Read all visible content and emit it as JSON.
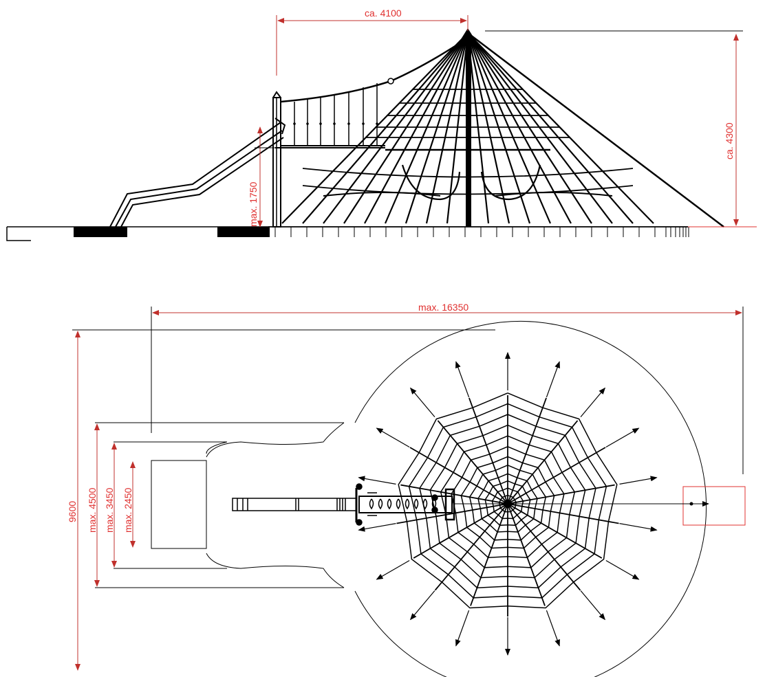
{
  "colors": {
    "dimension": "#e0302f",
    "line": "#000000",
    "background": "#ffffff"
  },
  "side_view": {
    "dim_width": "ca. 4100",
    "dim_height": "ca. 4300",
    "dim_platform": "max. 1750"
  },
  "plan_view": {
    "dim_length": "max. 16350",
    "dim_total_width": "9600",
    "dim_width_outer": "max. 4500",
    "dim_width_middle": "max. 3450",
    "dim_width_inner": "max. 2450"
  }
}
